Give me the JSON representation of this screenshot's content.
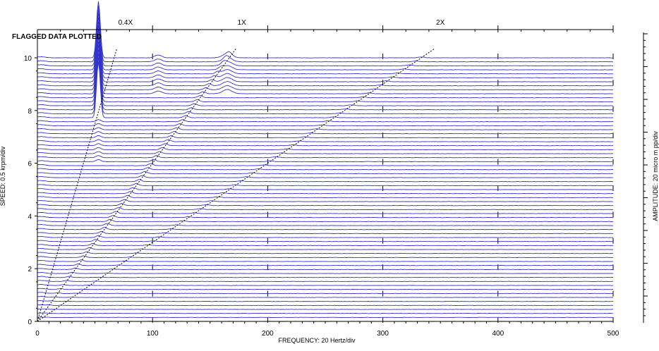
{
  "chart_data": {
    "type": "line",
    "title": "",
    "flag_text": "FLAGGED DATA PLOTTED",
    "xlabel": "FREQUENCY: 20 Hertz/div",
    "ylabel": "SPEED: 0.5 krpm/div",
    "amplitude_label": "AMPLITUDE: 20 micro m pp/div",
    "x_ticks": [
      "0",
      "100",
      "200",
      "300",
      "400",
      "500"
    ],
    "y_ticks": [
      "0",
      "2",
      "4",
      "6",
      "8",
      "10"
    ],
    "xlim": [
      0,
      500
    ],
    "ylim": [
      0,
      10
    ],
    "order_lines": [
      {
        "label": "0.4X",
        "order": 0.4
      },
      {
        "label": "1X",
        "order": 1
      },
      {
        "label": "2X",
        "order": 2
      }
    ],
    "speed_range_krpm": [
      0,
      10
    ],
    "waterfall_trace_count": 67,
    "dominant_peak": {
      "frequency_hz": 53,
      "speed_from_krpm": 7.6,
      "speed_to_krpm": 10
    },
    "line_color": "#3333cc"
  }
}
